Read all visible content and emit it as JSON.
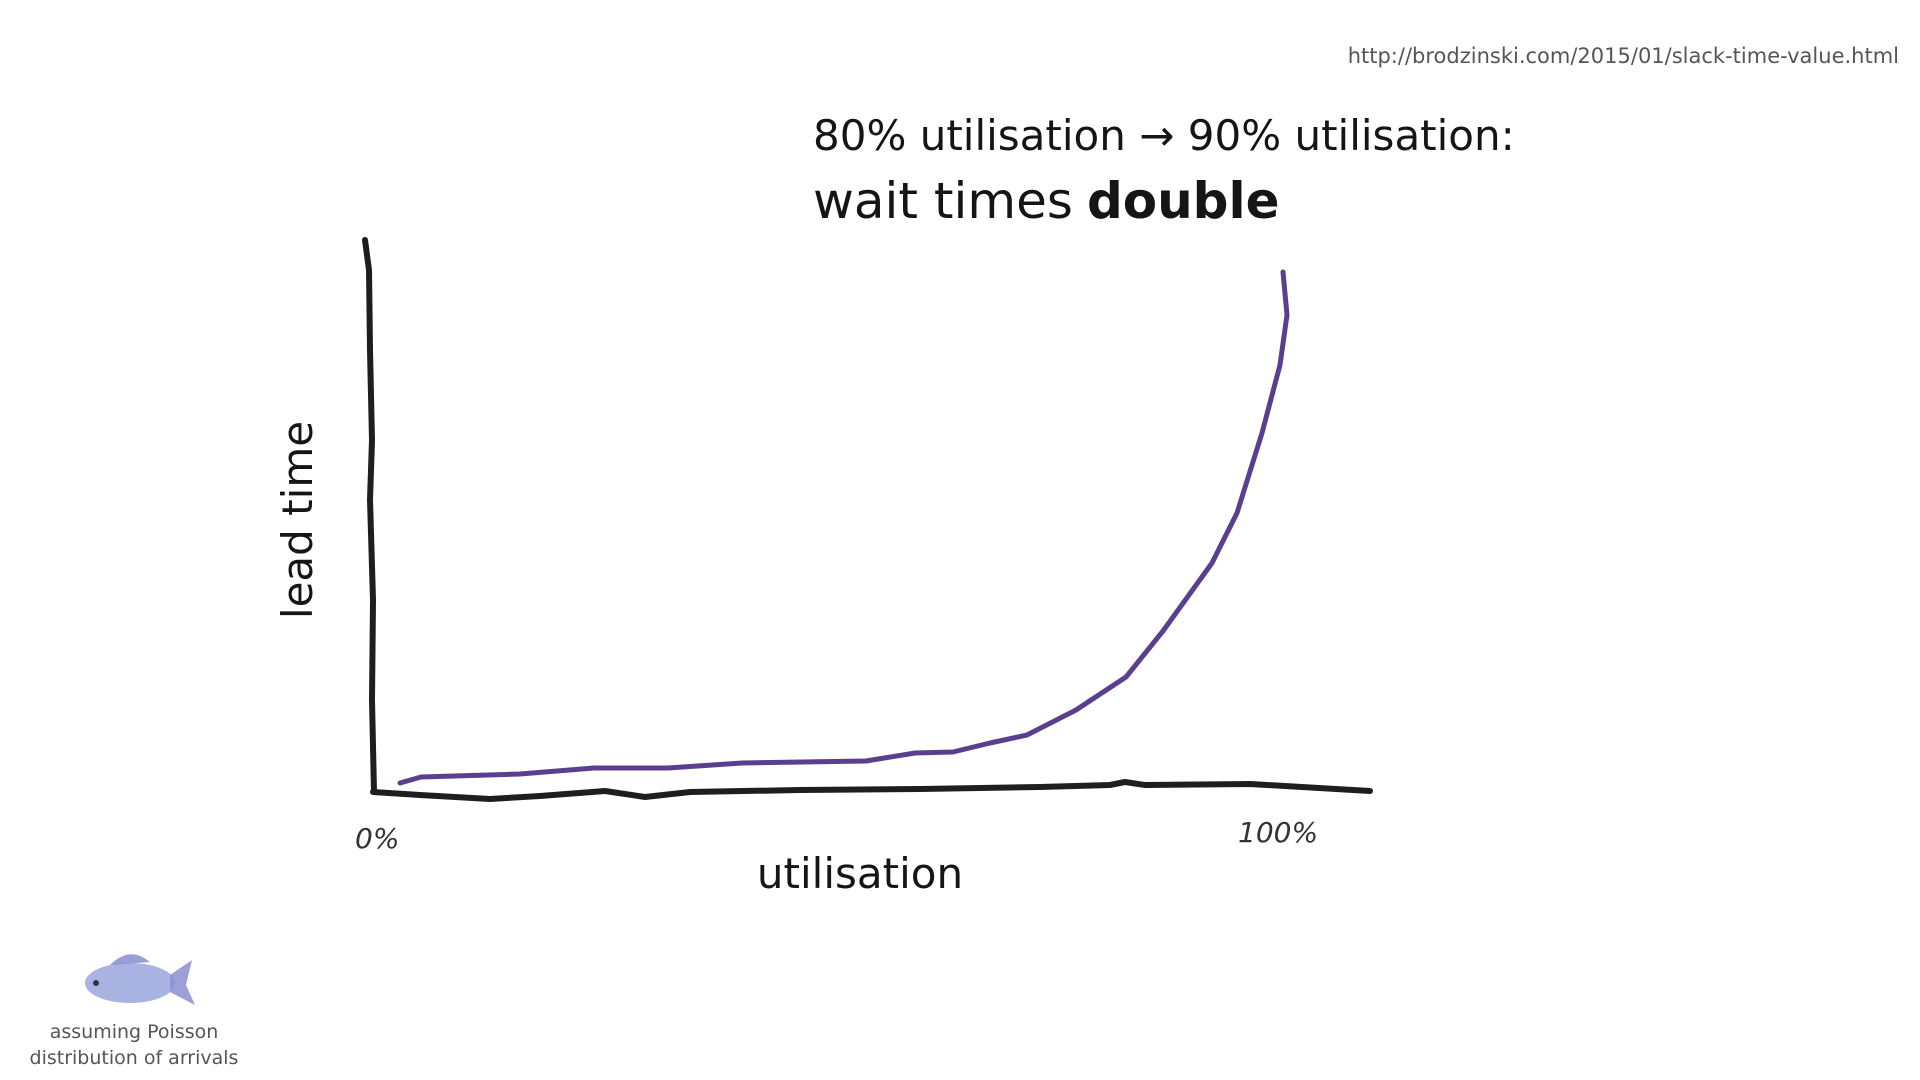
{
  "source_url": "http://brodzinski.com/2015/01/slack-time-value.html",
  "title": {
    "line1": "80% utilisation → 90% utilisation:",
    "line2": "wait times",
    "emphasis": "double"
  },
  "sketch": {
    "y_label": "lead time",
    "x_label": "utilisation",
    "x_start_label": "0%",
    "x_end_label": "100%"
  },
  "footnote": {
    "line1": "assuming Poisson",
    "line2": "distribution of arrivals"
  }
}
